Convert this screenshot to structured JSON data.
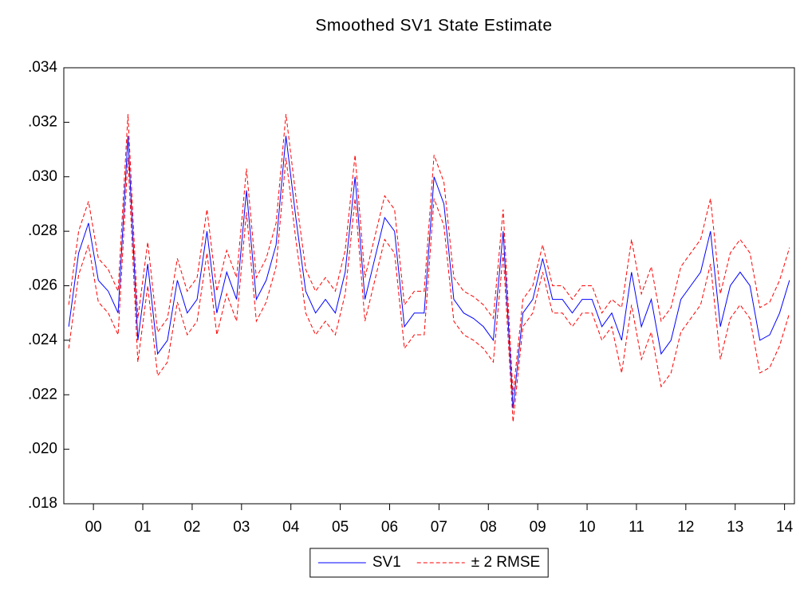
{
  "chart_data": {
    "type": "line",
    "title": "Smoothed SV1 State Estimate",
    "x": [
      2000,
      2000.2,
      2000.4,
      2000.6,
      2000.8,
      2001,
      2001.2,
      2001.4,
      2001.6,
      2001.8,
      2002,
      2002.2,
      2002.4,
      2002.6,
      2002.8,
      2003,
      2003.2,
      2003.4,
      2003.6,
      2003.8,
      2004,
      2004.2,
      2004.4,
      2004.6,
      2004.8,
      2005,
      2005.2,
      2005.4,
      2005.6,
      2005.8,
      2006,
      2006.2,
      2006.4,
      2006.6,
      2006.8,
      2007,
      2007.2,
      2007.4,
      2007.6,
      2007.8,
      2008,
      2008.2,
      2008.4,
      2008.6,
      2008.8,
      2009,
      2009.2,
      2009.4,
      2009.6,
      2009.8,
      2010,
      2010.2,
      2010.4,
      2010.6,
      2010.8,
      2011,
      2011.2,
      2011.4,
      2011.6,
      2011.8,
      2012,
      2012.2,
      2012.4,
      2012.6,
      2012.8,
      2013,
      2013.2,
      2013.4,
      2013.6,
      2013.8,
      2014,
      2014.2,
      2014.4,
      2014.6
    ],
    "series": [
      {
        "name": "SV1",
        "color": "#0000ff",
        "dash": false,
        "values": [
          0.0245,
          0.0272,
          0.0283,
          0.0262,
          0.0258,
          0.025,
          0.0315,
          0.024,
          0.0268,
          0.0235,
          0.024,
          0.0262,
          0.025,
          0.0255,
          0.028,
          0.025,
          0.0265,
          0.0255,
          0.0295,
          0.0255,
          0.0262,
          0.0275,
          0.0315,
          0.0285,
          0.0258,
          0.025,
          0.0255,
          0.025,
          0.0265,
          0.03,
          0.0255,
          0.027,
          0.0285,
          0.028,
          0.0245,
          0.025,
          0.025,
          0.03,
          0.029,
          0.0255,
          0.025,
          0.0248,
          0.0245,
          0.024,
          0.028,
          0.0215,
          0.025,
          0.0255,
          0.027,
          0.0255,
          0.0255,
          0.025,
          0.0255,
          0.0255,
          0.0245,
          0.025,
          0.024,
          0.0265,
          0.0245,
          0.0255,
          0.0235,
          0.024,
          0.0255,
          0.026,
          0.0265,
          0.028,
          0.0245,
          0.026,
          0.0265,
          0.026,
          0.024,
          0.0242,
          0.025,
          0.0262
        ]
      },
      {
        "name": "± 2 RMSE",
        "color": "#ff0000",
        "dash": true,
        "values": [
          0.0253,
          0.028,
          0.0291,
          0.027,
          0.0266,
          0.0258,
          0.0323,
          0.0248,
          0.0276,
          0.0243,
          0.0248,
          0.027,
          0.0258,
          0.0263,
          0.0288,
          0.0258,
          0.0273,
          0.0263,
          0.0303,
          0.0263,
          0.027,
          0.0283,
          0.0323,
          0.0293,
          0.0266,
          0.0258,
          0.0263,
          0.0258,
          0.0273,
          0.0308,
          0.0263,
          0.0278,
          0.0293,
          0.0288,
          0.0253,
          0.0258,
          0.0258,
          0.0308,
          0.0298,
          0.0263,
          0.0258,
          0.0256,
          0.0253,
          0.0248,
          0.0288,
          0.022,
          0.0255,
          0.026,
          0.0275,
          0.026,
          0.026,
          0.0255,
          0.026,
          0.026,
          0.025,
          0.0255,
          0.0252,
          0.0277,
          0.0257,
          0.0267,
          0.0247,
          0.0252,
          0.0267,
          0.0272,
          0.0277,
          0.0292,
          0.0257,
          0.0272,
          0.0277,
          0.0272,
          0.0252,
          0.0254,
          0.0262,
          0.0274
        ]
      },
      {
        "name": "± 2 RMSE",
        "color": "#ff0000",
        "dash": true,
        "values": [
          0.0237,
          0.0264,
          0.0275,
          0.0254,
          0.025,
          0.0242,
          0.0307,
          0.0232,
          0.026,
          0.0227,
          0.0232,
          0.0254,
          0.0242,
          0.0247,
          0.0272,
          0.0242,
          0.0257,
          0.0247,
          0.0287,
          0.0247,
          0.0254,
          0.0267,
          0.0307,
          0.0277,
          0.025,
          0.0242,
          0.0247,
          0.0242,
          0.0257,
          0.0292,
          0.0247,
          0.0262,
          0.0277,
          0.0272,
          0.0237,
          0.0242,
          0.0242,
          0.0292,
          0.0282,
          0.0247,
          0.0242,
          0.024,
          0.0237,
          0.0232,
          0.0272,
          0.021,
          0.0245,
          0.025,
          0.0265,
          0.025,
          0.025,
          0.0245,
          0.025,
          0.025,
          0.024,
          0.0245,
          0.0228,
          0.0253,
          0.0233,
          0.0243,
          0.0223,
          0.0228,
          0.0243,
          0.0248,
          0.0253,
          0.0268,
          0.0233,
          0.0248,
          0.0253,
          0.0248,
          0.0228,
          0.023,
          0.0238,
          0.025
        ]
      }
    ],
    "xlim": [
      1999.9,
      2014.7
    ],
    "xticks": [
      {
        "value": 2000.5,
        "label": "00"
      },
      {
        "value": 2001.5,
        "label": "01"
      },
      {
        "value": 2002.5,
        "label": "02"
      },
      {
        "value": 2003.5,
        "label": "03"
      },
      {
        "value": 2004.5,
        "label": "04"
      },
      {
        "value": 2005.5,
        "label": "05"
      },
      {
        "value": 2006.5,
        "label": "06"
      },
      {
        "value": 2007.5,
        "label": "07"
      },
      {
        "value": 2008.5,
        "label": "08"
      },
      {
        "value": 2009.5,
        "label": "09"
      },
      {
        "value": 2010.5,
        "label": "10"
      },
      {
        "value": 2011.5,
        "label": "11"
      },
      {
        "value": 2012.5,
        "label": "12"
      },
      {
        "value": 2013.5,
        "label": "13"
      },
      {
        "value": 2014.5,
        "label": "14"
      }
    ],
    "ylim": [
      0.018,
      0.034
    ],
    "yticks": [
      {
        "value": 0.018,
        "label": ".018"
      },
      {
        "value": 0.02,
        "label": ".020"
      },
      {
        "value": 0.022,
        "label": ".022"
      },
      {
        "value": 0.024,
        "label": ".024"
      },
      {
        "value": 0.026,
        "label": ".026"
      },
      {
        "value": 0.028,
        "label": ".028"
      },
      {
        "value": 0.03,
        "label": ".030"
      },
      {
        "value": 0.032,
        "label": ".032"
      },
      {
        "value": 0.034,
        "label": ".034"
      }
    ],
    "grid": false,
    "legend": "bottom"
  }
}
